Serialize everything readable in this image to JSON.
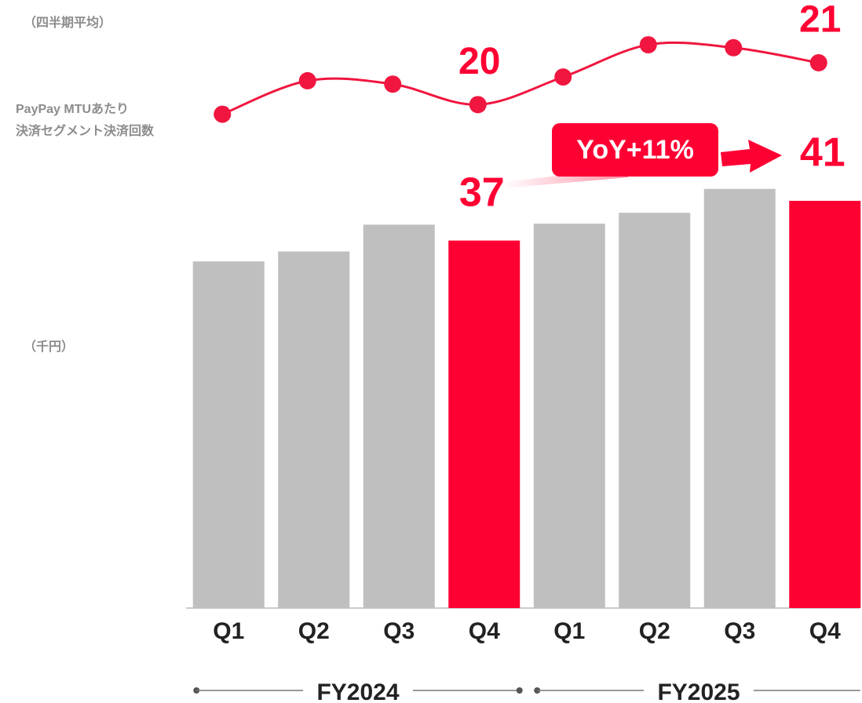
{
  "chart_data": {
    "type": "bar",
    "categories": [
      "Q1",
      "Q2",
      "Q3",
      "Q4",
      "Q1",
      "Q2",
      "Q3",
      "Q4"
    ],
    "groups": [
      {
        "label": "FY2024",
        "start": 0,
        "end": 3
      },
      {
        "label": "FY2025",
        "start": 4,
        "end": 7
      }
    ],
    "unit_label": "（千円）",
    "series": [
      {
        "type": "bar",
        "values": [
          34.9,
          35.9,
          38.6,
          37,
          38.7,
          39.8,
          42.2,
          41
        ],
        "value_labels": [
          null,
          null,
          null,
          "37",
          null,
          null,
          null,
          "41"
        ],
        "colors": [
          "#bfbfbf",
          "#bfbfbf",
          "#bfbfbf",
          "#ff0033",
          "#bfbfbf",
          "#bfbfbf",
          "#bfbfbf",
          "#ff0033"
        ]
      },
      {
        "type": "line",
        "axis": "y2",
        "label": [
          "PayPay MTUあたり",
          "決済セグメント決済回数"
        ],
        "unit_label": "（四半期平均）",
        "values": [
          19.77,
          20.57,
          20.49,
          20,
          20.66,
          21.43,
          21.36,
          21
        ],
        "value_labels": [
          null,
          null,
          null,
          "20",
          null,
          null,
          null,
          "21"
        ],
        "color": "#f0163f"
      }
    ],
    "ylim": [
      0,
      50
    ],
    "y2lim": [
      19.5,
      21.6
    ],
    "annotation": "YoY+11%"
  }
}
